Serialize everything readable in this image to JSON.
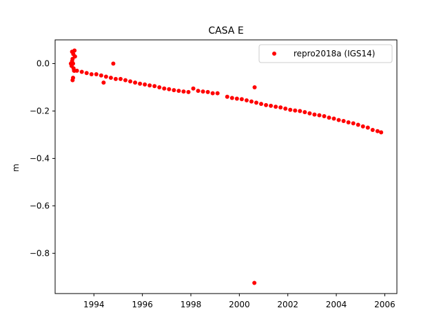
{
  "chart_data": {
    "type": "scatter",
    "title": "CASA E",
    "xlabel": "",
    "ylabel": "m",
    "xlim": [
      1992.4,
      2006.5
    ],
    "ylim": [
      -0.97,
      0.1
    ],
    "x_ticks": [
      1994,
      1996,
      1998,
      2000,
      2002,
      2004,
      2006
    ],
    "x_tick_labels": [
      "1994",
      "1996",
      "1998",
      "2000",
      "2002",
      "2004",
      "2006"
    ],
    "y_ticks": [
      0.0,
      -0.2,
      -0.4,
      -0.6,
      -0.8
    ],
    "y_tick_labels": [
      "0.0",
      "−0.2",
      "−0.4",
      "−0.6",
      "−0.8"
    ],
    "grid": false,
    "legend_position": "top-right",
    "series": [
      {
        "name": "repro2018a (IGS14)",
        "color": "#ff0000",
        "marker": "circle",
        "x": [
          1993.05,
          1993.08,
          1993.1,
          1993.12,
          1993.14,
          1993.16,
          1993.18,
          1993.2,
          1993.3,
          1993.5,
          1993.7,
          1993.9,
          1994.1,
          1994.3,
          1994.5,
          1994.7,
          1994.9,
          1995.1,
          1995.3,
          1995.5,
          1995.7,
          1995.9,
          1996.1,
          1996.3,
          1996.5,
          1996.7,
          1996.9,
          1997.1,
          1997.3,
          1997.5,
          1997.7,
          1997.9,
          1998.1,
          1998.3,
          1998.5,
          1998.7,
          1998.9,
          1999.1,
          1999.5,
          1999.7,
          1999.9,
          2000.1,
          2000.3,
          2000.5,
          2000.7,
          2000.9,
          2001.1,
          2001.3,
          2001.5,
          2001.7,
          2001.9,
          2002.1,
          2002.3,
          2002.5,
          2002.7,
          2002.9,
          2003.1,
          2003.3,
          2003.5,
          2003.7,
          2003.9,
          2004.1,
          2004.3,
          2004.5,
          2004.7,
          2004.9,
          2005.1,
          2005.3,
          2005.5,
          2005.7,
          2005.85,
          1993.1,
          1993.15,
          1993.2,
          1993.22,
          1993.12,
          1993.14,
          1994.4,
          1994.8,
          2000.63,
          2000.62
        ],
        "y": [
          0.0,
          -0.01,
          0.01,
          0.02,
          0.0,
          -0.02,
          -0.03,
          -0.03,
          -0.03,
          -0.035,
          -0.04,
          -0.045,
          -0.045,
          -0.05,
          -0.055,
          -0.06,
          -0.065,
          -0.065,
          -0.07,
          -0.075,
          -0.08,
          -0.085,
          -0.088,
          -0.092,
          -0.095,
          -0.1,
          -0.105,
          -0.108,
          -0.112,
          -0.115,
          -0.118,
          -0.12,
          -0.105,
          -0.115,
          -0.118,
          -0.12,
          -0.125,
          -0.125,
          -0.14,
          -0.145,
          -0.148,
          -0.15,
          -0.155,
          -0.16,
          -0.165,
          -0.17,
          -0.175,
          -0.178,
          -0.182,
          -0.185,
          -0.19,
          -0.195,
          -0.198,
          -0.2,
          -0.205,
          -0.21,
          -0.215,
          -0.218,
          -0.222,
          -0.228,
          -0.232,
          -0.238,
          -0.242,
          -0.248,
          -0.252,
          -0.258,
          -0.265,
          -0.27,
          -0.28,
          -0.285,
          -0.29,
          0.05,
          0.04,
          0.055,
          0.03,
          -0.07,
          -0.06,
          -0.08,
          0.0,
          -0.1,
          -0.925
        ]
      }
    ]
  }
}
